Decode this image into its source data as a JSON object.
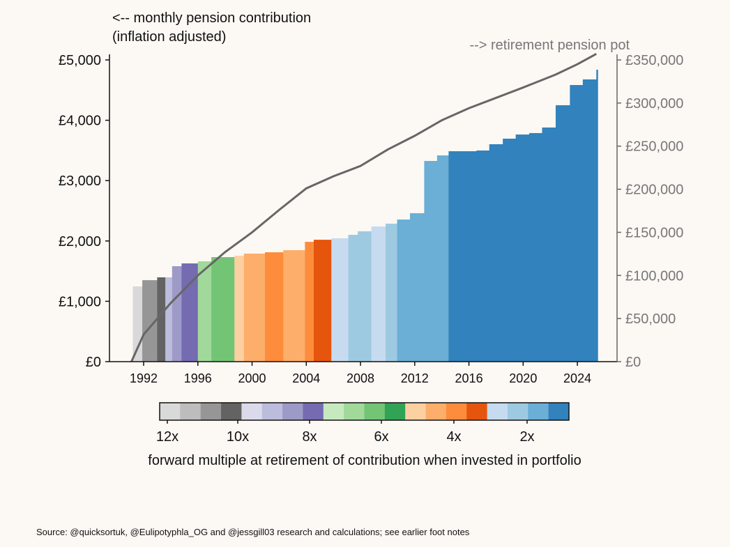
{
  "chart_data": {
    "type": "bar",
    "title_left": "<-- monthly pension contribution",
    "title_left_2": "(inflation adjusted)",
    "title_right": "--> retirement pension pot",
    "xlim": [
      1989.6,
      2026.9
    ],
    "x_ticks": [
      1992,
      1996,
      2000,
      2004,
      2008,
      2012,
      2016,
      2020,
      2024
    ],
    "y_left": {
      "lim": [
        0,
        5000
      ],
      "ticks": [
        0,
        1000,
        2000,
        3000,
        4000,
        5000
      ],
      "tick_labels": [
        "£0",
        "£1,000",
        "£2,000",
        "£3,000",
        "£4,000",
        "£5,000"
      ]
    },
    "y_right": {
      "lim": [
        0,
        350000
      ],
      "ticks": [
        0,
        50000,
        100000,
        150000,
        200000,
        250000,
        300000,
        350000
      ],
      "tick_labels": [
        "£0",
        "£50,000",
        "£100,000",
        "£150,000",
        "£200,000",
        "£250,000",
        "£300,000",
        "£350,000"
      ]
    },
    "bars": [
      {
        "start": 1991.2,
        "end": 1991.9,
        "value": 1247,
        "color": "#d9d9d9"
      },
      {
        "start": 1991.9,
        "end": 1993.0,
        "value": 1350,
        "color": "#969696"
      },
      {
        "start": 1993.0,
        "end": 1993.6,
        "value": 1397,
        "color": "#636363"
      },
      {
        "start": 1993.6,
        "end": 1994.1,
        "value": 1397,
        "color": "#bcbddc"
      },
      {
        "start": 1994.1,
        "end": 1994.8,
        "value": 1582,
        "color": "#9e9ac8"
      },
      {
        "start": 1994.8,
        "end": 1996.0,
        "value": 1628,
        "color": "#756bb1"
      },
      {
        "start": 1996.0,
        "end": 1997.0,
        "value": 1663,
        "color": "#a1d99b"
      },
      {
        "start": 1997.0,
        "end": 1998.7,
        "value": 1732,
        "color": "#74c476"
      },
      {
        "start": 1998.7,
        "end": 1999.4,
        "value": 1755,
        "color": "#fdd0a2"
      },
      {
        "start": 1999.4,
        "end": 2000.95,
        "value": 1790,
        "color": "#fdae6b"
      },
      {
        "start": 2000.95,
        "end": 2002.3,
        "value": 1813,
        "color": "#fd8d3c"
      },
      {
        "start": 2002.3,
        "end": 2003.9,
        "value": 1847,
        "color": "#fdae6b"
      },
      {
        "start": 2003.9,
        "end": 2004.55,
        "value": 1986,
        "color": "#fd8d3c"
      },
      {
        "start": 2004.55,
        "end": 2005.85,
        "value": 2020,
        "color": "#e6550d"
      },
      {
        "start": 2005.85,
        "end": 2007.1,
        "value": 2044,
        "color": "#c6dbef"
      },
      {
        "start": 2007.1,
        "end": 2007.8,
        "value": 2102,
        "color": "#9ecae1"
      },
      {
        "start": 2007.8,
        "end": 2008.8,
        "value": 2160,
        "color": "#9ecae1"
      },
      {
        "start": 2008.8,
        "end": 2009.85,
        "value": 2240,
        "color": "#c6dbef"
      },
      {
        "start": 2009.85,
        "end": 2010.7,
        "value": 2286,
        "color": "#9ecae1"
      },
      {
        "start": 2010.7,
        "end": 2011.65,
        "value": 2355,
        "color": "#6baed6"
      },
      {
        "start": 2011.65,
        "end": 2012.7,
        "value": 2460,
        "color": "#6baed6"
      },
      {
        "start": 2012.7,
        "end": 2013.65,
        "value": 3326,
        "color": "#6baed6"
      },
      {
        "start": 2013.65,
        "end": 2014.5,
        "value": 3418,
        "color": "#6baed6"
      },
      {
        "start": 2014.5,
        "end": 2016.55,
        "value": 3487,
        "color": "#3182bd"
      },
      {
        "start": 2016.55,
        "end": 2017.5,
        "value": 3499,
        "color": "#3182bd"
      },
      {
        "start": 2017.5,
        "end": 2018.5,
        "value": 3603,
        "color": "#3182bd"
      },
      {
        "start": 2018.5,
        "end": 2019.45,
        "value": 3695,
        "color": "#3182bd"
      },
      {
        "start": 2019.45,
        "end": 2020.45,
        "value": 3764,
        "color": "#3182bd"
      },
      {
        "start": 2020.45,
        "end": 2021.4,
        "value": 3788,
        "color": "#3182bd"
      },
      {
        "start": 2021.4,
        "end": 2022.4,
        "value": 3880,
        "color": "#3182bd"
      },
      {
        "start": 2022.4,
        "end": 2023.45,
        "value": 4249,
        "color": "#3182bd"
      },
      {
        "start": 2023.45,
        "end": 2024.4,
        "value": 4584,
        "color": "#3182bd"
      },
      {
        "start": 2024.4,
        "end": 2025.4,
        "value": 4677,
        "color": "#3182bd"
      },
      {
        "start": 2025.4,
        "end": 2025.5,
        "value": 4838,
        "color": "#3182bd"
      }
    ],
    "pot_line": {
      "color": "#666666",
      "x": [
        1991.1,
        1992,
        1994,
        1996,
        1998,
        2000,
        2002,
        2004,
        2006,
        2008,
        2010,
        2012,
        2014,
        2016,
        2018,
        2020,
        2022.4,
        2024,
        2025.4
      ],
      "y": [
        0,
        31500,
        68000,
        100000,
        127000,
        150000,
        176000,
        201000,
        215000,
        227000,
        246000,
        262000,
        280000,
        294000,
        306000,
        318000,
        333000,
        345000,
        357000
      ]
    },
    "colorbar": {
      "colors": [
        "#d9d9d9",
        "#bdbdbd",
        "#969696",
        "#636363",
        "#dadaeb",
        "#bcbddc",
        "#9e9ac8",
        "#756bb1",
        "#c7e9c0",
        "#a1d99b",
        "#74c476",
        "#31a354",
        "#fdd0a2",
        "#fdae6b",
        "#fd8d3c",
        "#e6550d",
        "#c6dbef",
        "#9ecae1",
        "#6baed6",
        "#3182bd"
      ],
      "tick_labels": [
        "12x",
        "10x",
        "8x",
        "6x",
        "4x",
        "2x"
      ],
      "label": "forward multiple at retirement of contribution when invested in portfolio"
    }
  },
  "footer": {
    "source": "Source: @quicksortuk, @Eulipotyphla_OG and @jessgill03 research and calculations; see earlier foot notes"
  }
}
